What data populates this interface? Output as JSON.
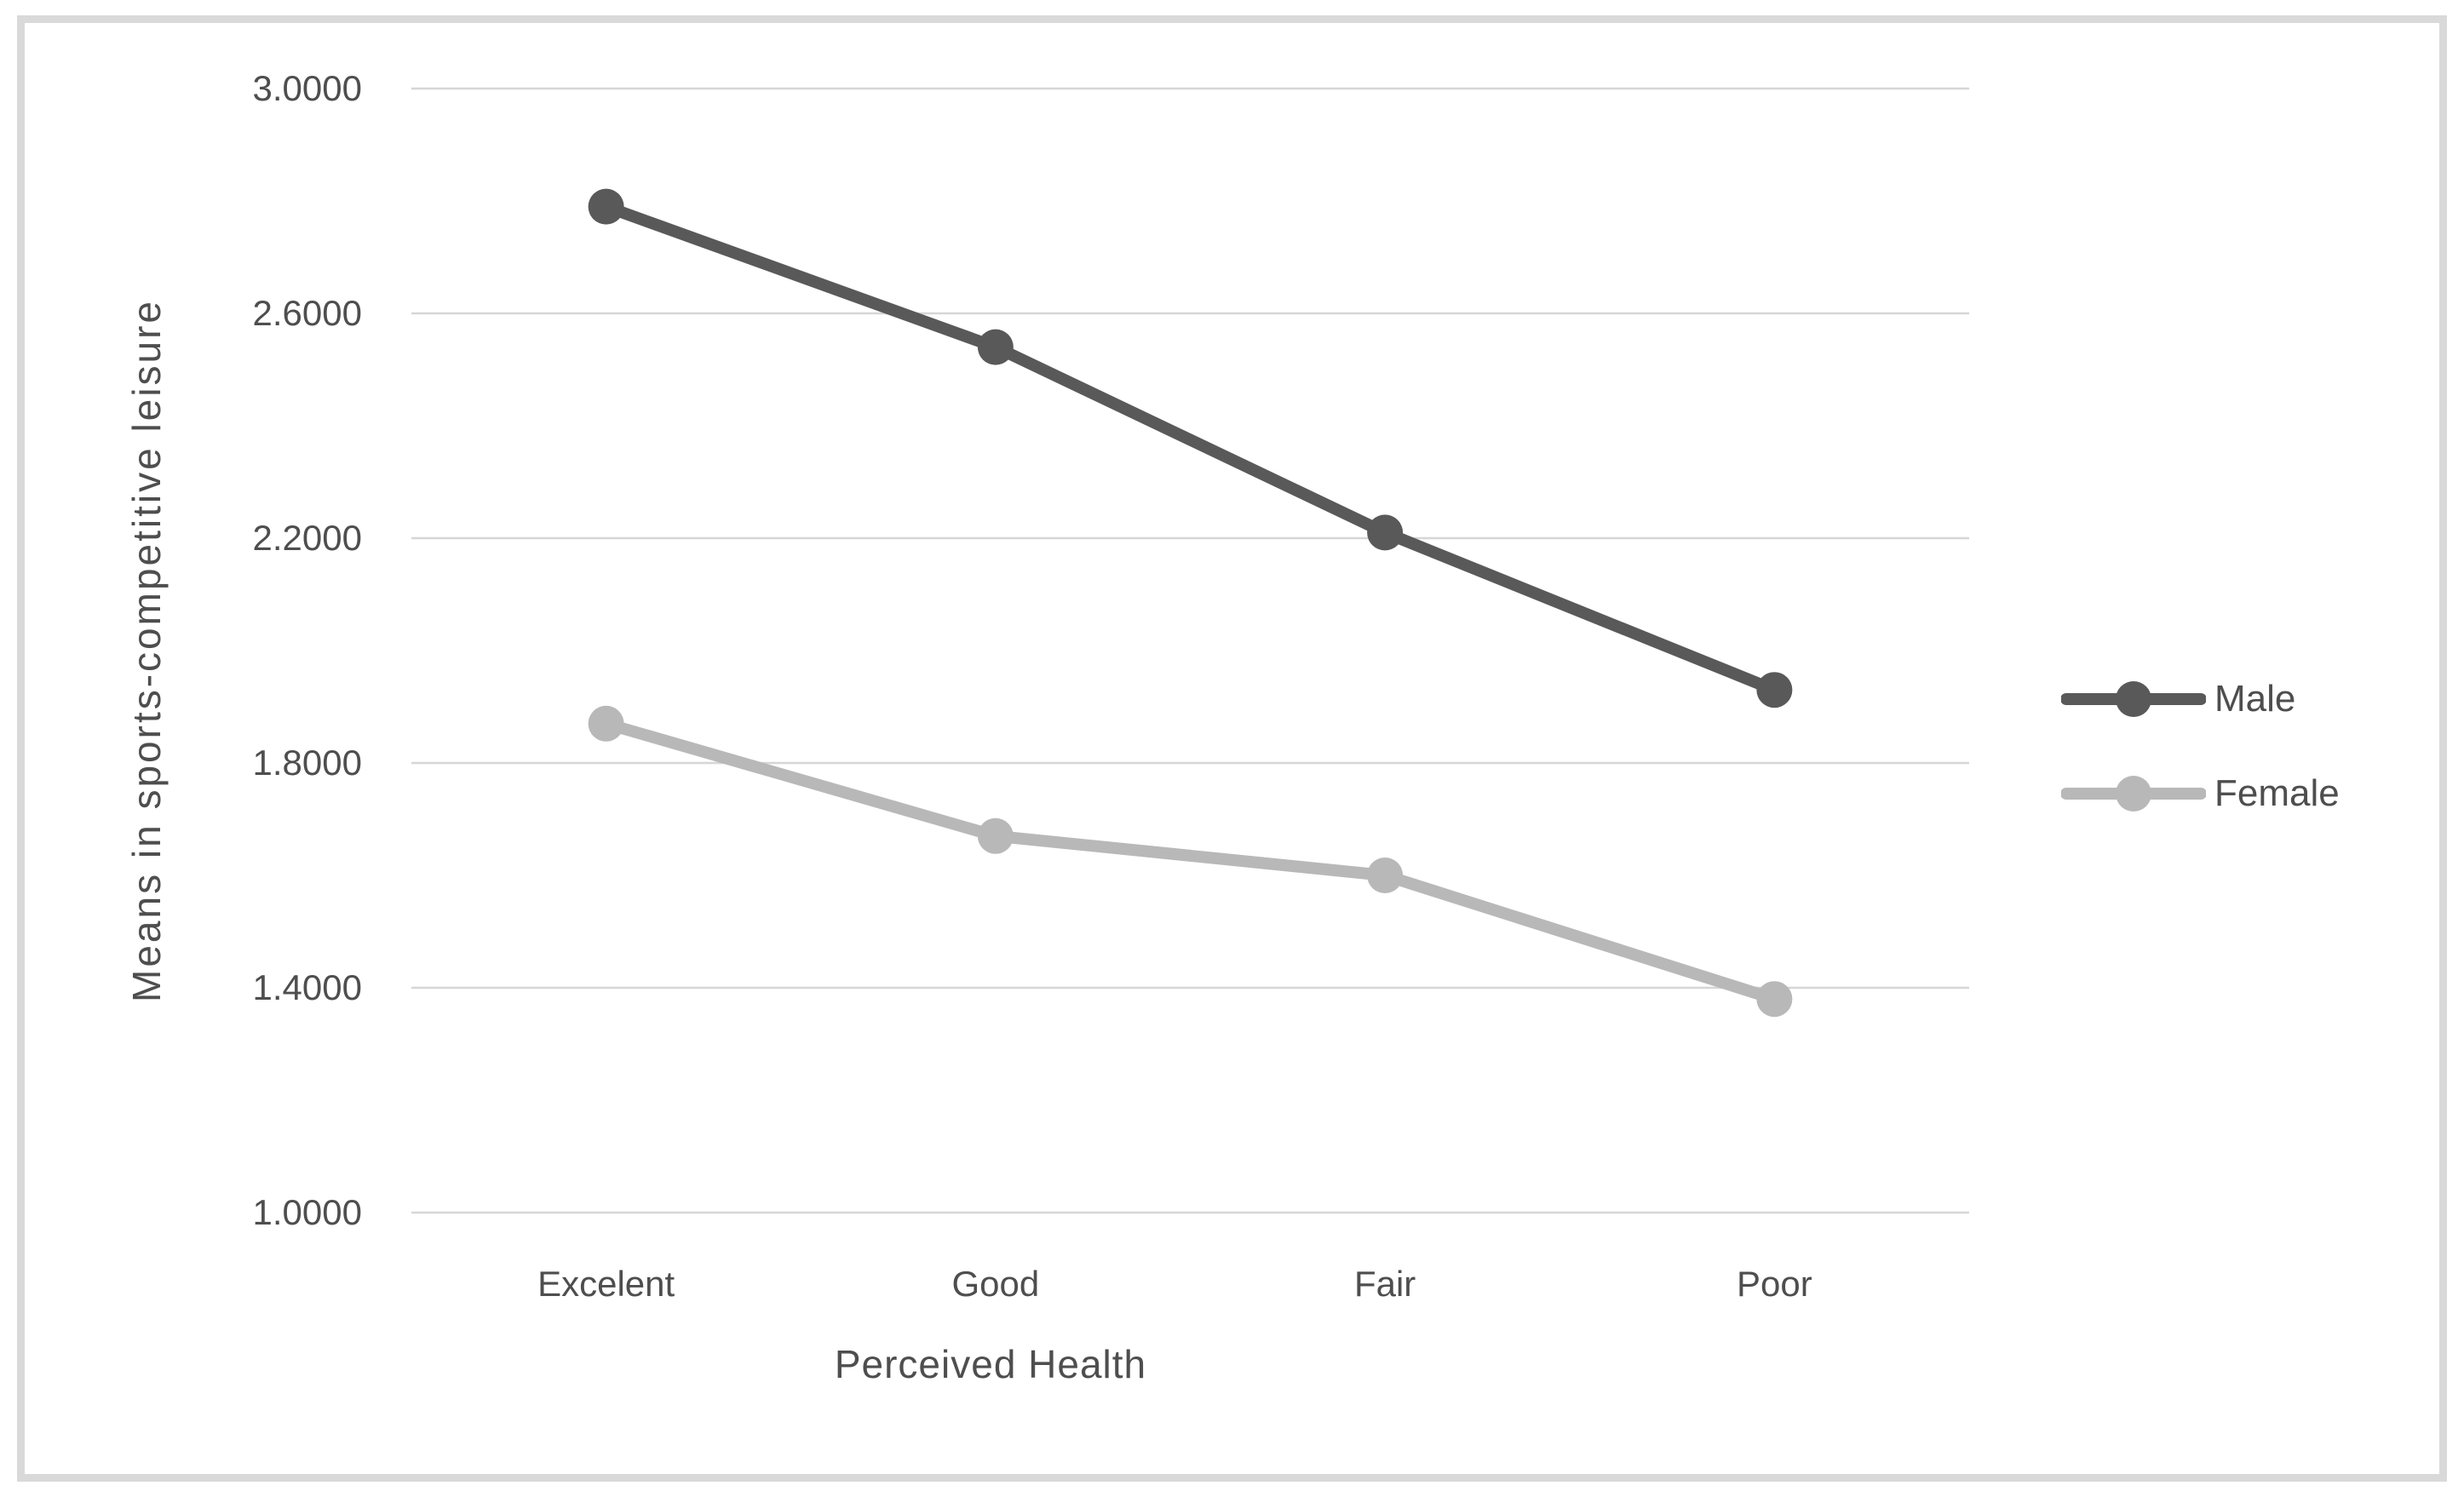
{
  "chart_data": {
    "type": "line",
    "title": "",
    "categories": [
      "Excelent",
      "Good",
      "Fair",
      "Poor"
    ],
    "series": [
      {
        "name": "Male",
        "color": "#595959",
        "values": [
          2.79,
          2.54,
          2.21,
          1.93
        ]
      },
      {
        "name": "Female",
        "color": "#b8b8b8",
        "values": [
          1.87,
          1.67,
          1.6,
          1.38
        ]
      }
    ],
    "xlabel": "Perceived Health",
    "ylabel": "Means in sports-competitive leisure",
    "ylim": [
      1.0,
      3.0
    ],
    "yticks": [
      3.0,
      2.6,
      2.2,
      1.8,
      1.4,
      1.0
    ],
    "ytick_labels": [
      "3.0000",
      "2.6000",
      "2.2000",
      "1.8000",
      "1.4000",
      "1.0000"
    ],
    "grid": "horizontal",
    "legend_position": "right",
    "marker": "circle"
  },
  "colors": {
    "background": "#ffffff",
    "chart_border": "#d9d9d9",
    "gridline": "#d6d6d6",
    "text": "#4e4e4e",
    "male_series": "#595959",
    "female_series": "#b8b8b8"
  }
}
